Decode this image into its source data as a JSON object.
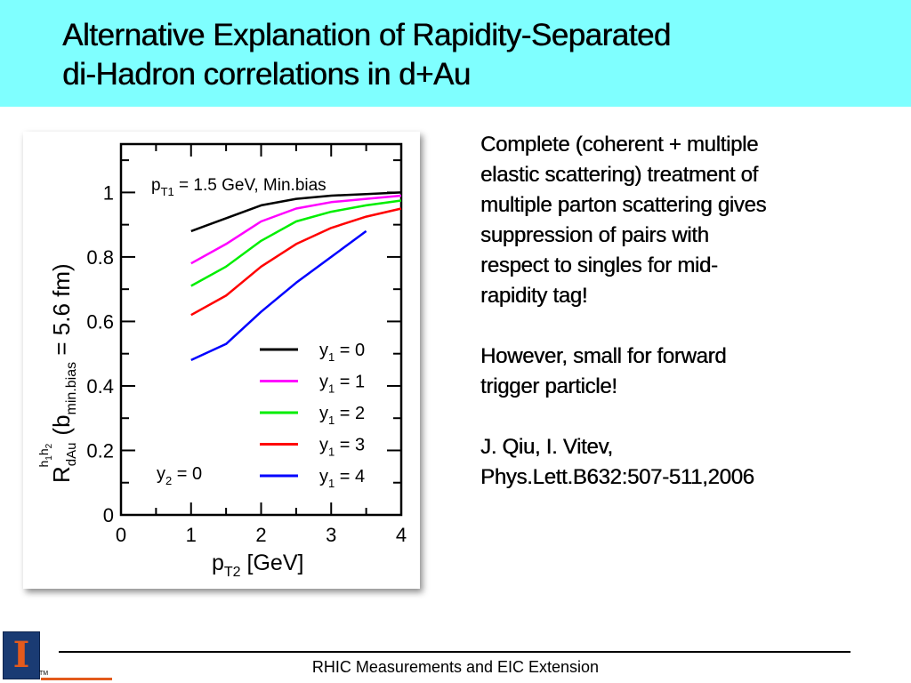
{
  "slide": {
    "title_line1": "Alternative Explanation of Rapidity-Separated",
    "title_line2": "di-Hadron correlations in d+Au",
    "right_text": {
      "p1_lines": [
        "Complete (coherent + multiple",
        "elastic scattering) treatment of",
        "multiple parton scattering gives",
        "suppression of pairs with",
        "respect to singles for mid-",
        "rapidity tag!"
      ],
      "p2_lines": [
        "However,  small for forward",
        "trigger particle!"
      ],
      "p3_lines": [
        "J. Qiu, I. Vitev,",
        "Phys.Lett.B632:507-511,2006"
      ]
    },
    "footer": "RHIC Measurements and EIC Extension",
    "logo_letter": "I",
    "logo_tm": "TM",
    "colors": {
      "title_bar": "#7fffff",
      "logo_blue": "#1a3b73",
      "logo_orange": "#e35a1c"
    }
  },
  "chart_data": {
    "type": "line",
    "ylabel": "R_dAu^h1h2 (b_min.bias = 5.6 fm)",
    "xlabel": "p_T2 [GeV]",
    "annotation_top": "p_T1 = 1.5 GeV,  Min.bias",
    "annotation_bottom": "y_2 = 0",
    "xlim": [
      0,
      4
    ],
    "ylim": [
      0,
      1.15
    ],
    "x_ticks": [
      "0",
      "1",
      "2",
      "3",
      "4"
    ],
    "y_ticks": [
      "0",
      "0.2",
      "0.4",
      "0.6",
      "0.8",
      "1"
    ],
    "x": [
      1.0,
      1.5,
      2.0,
      2.5,
      3.0,
      3.5,
      4.0
    ],
    "series": [
      {
        "name": "y_1 = 0",
        "color": "#000000",
        "values": [
          0.88,
          0.92,
          0.96,
          0.98,
          0.99,
          0.995,
          1.0
        ]
      },
      {
        "name": "y_1 = 1",
        "color": "#ff00ff",
        "values": [
          0.78,
          0.84,
          0.91,
          0.95,
          0.97,
          0.98,
          0.99
        ]
      },
      {
        "name": "y_1 = 2",
        "color": "#00ee00",
        "values": [
          0.71,
          0.77,
          0.85,
          0.91,
          0.94,
          0.96,
          0.975
        ]
      },
      {
        "name": "y_1 = 3",
        "color": "#ff0000",
        "values": [
          0.62,
          0.68,
          0.77,
          0.84,
          0.89,
          0.925,
          0.95
        ]
      },
      {
        "name": "y_1 = 4",
        "color": "#0000ff",
        "values": [
          0.48,
          0.53,
          0.63,
          0.72,
          0.8,
          0.88,
          null
        ]
      }
    ],
    "legend_position": "lower-right"
  }
}
